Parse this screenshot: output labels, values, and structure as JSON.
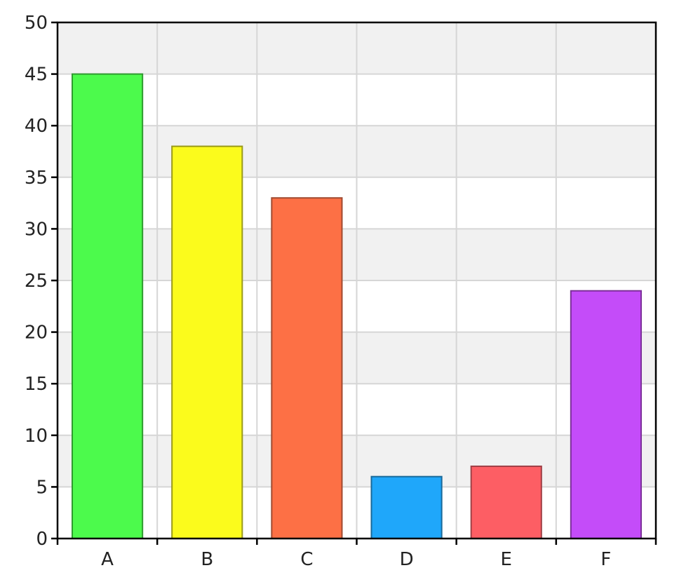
{
  "chart_data": {
    "type": "bar",
    "categories": [
      "A",
      "B",
      "C",
      "D",
      "E",
      "F"
    ],
    "values": [
      45,
      38,
      33,
      6,
      7,
      24
    ],
    "colors": [
      "#4cfa4c",
      "#fbfb1c",
      "#fd7045",
      "#1fa7fa",
      "#fd5e64",
      "#c44cf9"
    ],
    "edge_colors": [
      "#2f9a2f",
      "#9a9a1a",
      "#a04a30",
      "#1a6a9a",
      "#a04046",
      "#7c2f9a"
    ],
    "ylim": [
      0,
      50
    ],
    "yticks": [
      0,
      5,
      10,
      15,
      20,
      25,
      30,
      35,
      40,
      45,
      50
    ],
    "grid": true,
    "band_color": "#f1f1f1",
    "grid_color": "#d6d6d6"
  }
}
